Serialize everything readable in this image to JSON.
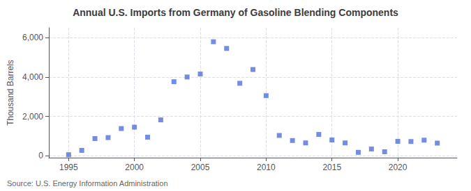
{
  "chart_data": {
    "type": "scatter",
    "title": "Annual U.S. Imports from Germany of Gasoline Blending Components",
    "ylabel": "Thousand Barrels",
    "annotations": [
      "Source: U.S. Energy Information Administration"
    ],
    "x": [
      1995,
      1996,
      1997,
      1998,
      1999,
      2000,
      2001,
      2002,
      2003,
      2004,
      2005,
      2006,
      2007,
      2008,
      2009,
      2010,
      2011,
      2012,
      2013,
      2014,
      2015,
      2016,
      2017,
      2018,
      2019,
      2020,
      2021,
      2022,
      2023
    ],
    "values": [
      50,
      270,
      870,
      920,
      1380,
      1450,
      940,
      1820,
      3760,
      4000,
      4150,
      5790,
      5450,
      3680,
      4380,
      3050,
      1030,
      770,
      650,
      1080,
      800,
      650,
      170,
      340,
      200,
      730,
      720,
      790,
      640
    ],
    "marker": "square",
    "xlim": [
      1993.5,
      2024.5
    ],
    "xticks": [
      1995,
      2000,
      2005,
      2010,
      2015,
      2020
    ],
    "ylim": [
      -100,
      6500
    ],
    "yticks": [
      0,
      {
        "value": 2000,
        "label": "2,000"
      },
      {
        "value": 4000,
        "label": "4,000"
      },
      {
        "value": 6000,
        "label": "6,000"
      }
    ],
    "grid": true
  }
}
